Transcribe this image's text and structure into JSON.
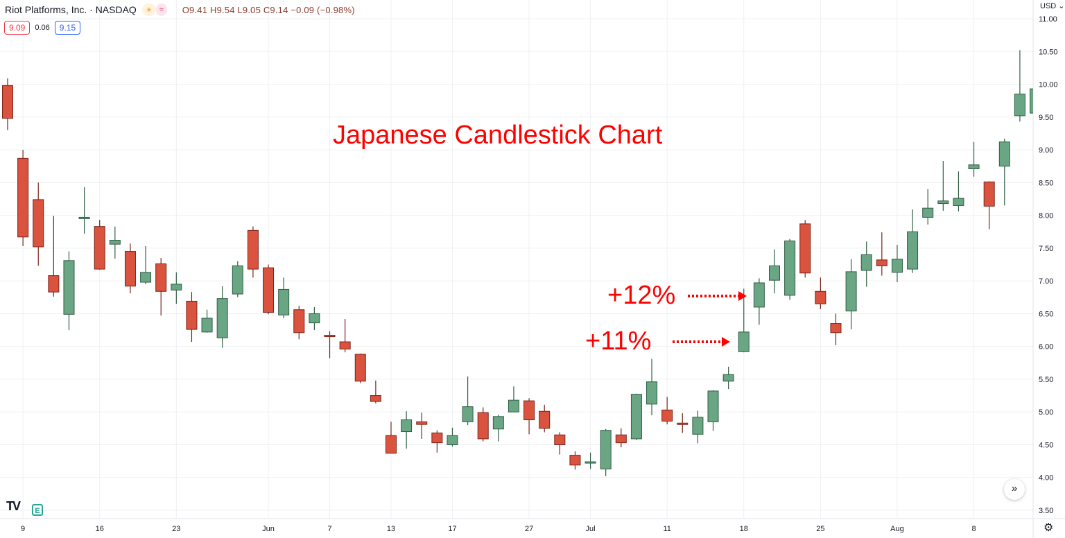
{
  "header": {
    "symbol": "Riot Platforms, Inc. · NASDAQ",
    "session_icon": "sun-icon",
    "session_glyph": "☀",
    "extended_icon": "waves-icon",
    "extended_glyph": "≈",
    "ohlc": "O9.41 H9.54 L9.05 C9.14 −0.09 (−0.98%)",
    "sell_price": "9.09",
    "spread": "0.06",
    "buy_price": "9.15",
    "currency": "USD ⌄"
  },
  "annotations": {
    "title": "Japanese Candlestick Chart",
    "label_12": "+12%",
    "label_11": "+11%",
    "color": "#ff0000"
  },
  "footer": {
    "logo": "TV",
    "e_icon": "E",
    "scroll_glyph": "»",
    "gear_glyph": "⚙"
  },
  "chart_data": {
    "type": "candlestick",
    "title": "Japanese Candlestick Chart",
    "ylim": [
      3.5,
      11.0
    ],
    "y_ticks": [
      "3.50",
      "4.00",
      "4.50",
      "5.00",
      "5.50",
      "6.00",
      "6.50",
      "7.00",
      "7.50",
      "8.00",
      "8.50",
      "9.00",
      "9.50",
      "10.00",
      "10.50",
      "11.00"
    ],
    "x_ticks": [
      {
        "label": "9",
        "index": 1
      },
      {
        "label": "16",
        "index": 6
      },
      {
        "label": "23",
        "index": 11
      },
      {
        "label": "Jun",
        "index": 17
      },
      {
        "label": "7",
        "index": 21
      },
      {
        "label": "13",
        "index": 25
      },
      {
        "label": "17",
        "index": 29
      },
      {
        "label": "27",
        "index": 34
      },
      {
        "label": "Jul",
        "index": 38
      },
      {
        "label": "11",
        "index": 43
      },
      {
        "label": "18",
        "index": 48
      },
      {
        "label": "25",
        "index": 53
      },
      {
        "label": "Aug",
        "index": 58
      },
      {
        "label": "8",
        "index": 63
      }
    ],
    "grid": true,
    "up_color": "#6aa684",
    "down_color": "#d9533f",
    "candles": [
      [
        9.98,
        10.09,
        9.3,
        9.48
      ],
      [
        8.87,
        9.0,
        7.53,
        7.67
      ],
      [
        8.24,
        8.5,
        7.23,
        7.52
      ],
      [
        7.08,
        7.99,
        6.76,
        6.83
      ],
      [
        6.49,
        7.45,
        6.25,
        7.31
      ],
      [
        7.95,
        8.43,
        7.72,
        7.97
      ],
      [
        7.83,
        7.93,
        7.17,
        7.18
      ],
      [
        7.56,
        7.83,
        7.34,
        7.62
      ],
      [
        7.45,
        7.57,
        6.81,
        6.92
      ],
      [
        6.98,
        7.53,
        6.95,
        7.13
      ],
      [
        7.26,
        7.35,
        6.47,
        6.84
      ],
      [
        6.86,
        7.13,
        6.65,
        6.95
      ],
      [
        6.69,
        6.83,
        6.07,
        6.26
      ],
      [
        6.22,
        6.56,
        6.21,
        6.43
      ],
      [
        6.13,
        6.92,
        5.98,
        6.73
      ],
      [
        6.8,
        7.3,
        6.75,
        7.23
      ],
      [
        7.77,
        7.83,
        7.05,
        7.18
      ],
      [
        7.2,
        7.25,
        6.49,
        6.52
      ],
      [
        6.48,
        7.05,
        6.43,
        6.87
      ],
      [
        6.56,
        6.62,
        6.11,
        6.21
      ],
      [
        6.36,
        6.6,
        6.25,
        6.5
      ],
      [
        6.17,
        6.23,
        5.82,
        6.15
      ],
      [
        6.07,
        6.42,
        5.91,
        5.96
      ],
      [
        5.88,
        5.89,
        5.44,
        5.47
      ],
      [
        5.25,
        5.48,
        5.13,
        5.16
      ],
      [
        4.64,
        4.85,
        4.37,
        4.37
      ],
      [
        4.7,
        5.01,
        4.44,
        4.88
      ],
      [
        4.85,
        4.99,
        4.59,
        4.81
      ],
      [
        4.68,
        4.72,
        4.38,
        4.53
      ],
      [
        4.5,
        4.76,
        4.47,
        4.64
      ],
      [
        4.85,
        5.54,
        4.8,
        5.08
      ],
      [
        4.99,
        5.07,
        4.55,
        4.59
      ],
      [
        4.74,
        4.96,
        4.55,
        4.93
      ],
      [
        5.0,
        5.39,
        5.0,
        5.18
      ],
      [
        5.17,
        5.21,
        4.66,
        4.88
      ],
      [
        5.01,
        5.11,
        4.69,
        4.75
      ],
      [
        4.65,
        4.69,
        4.35,
        4.5
      ],
      [
        4.34,
        4.4,
        4.12,
        4.19
      ],
      [
        4.23,
        4.38,
        4.13,
        4.24
      ],
      [
        4.13,
        4.74,
        4.02,
        4.72
      ],
      [
        4.65,
        4.75,
        4.46,
        4.53
      ],
      [
        4.59,
        5.28,
        4.57,
        5.27
      ],
      [
        5.12,
        5.81,
        4.95,
        5.46
      ],
      [
        5.03,
        5.23,
        4.81,
        4.86
      ],
      [
        4.83,
        4.98,
        4.68,
        4.82
      ],
      [
        4.66,
        5.02,
        4.52,
        4.92
      ],
      [
        4.85,
        5.33,
        4.71,
        5.32
      ],
      [
        5.47,
        5.69,
        5.35,
        5.57
      ],
      [
        5.92,
        6.88,
        5.91,
        6.22
      ],
      [
        6.6,
        7.04,
        6.33,
        6.97
      ],
      [
        7.01,
        7.48,
        6.81,
        7.23
      ],
      [
        6.78,
        7.64,
        6.71,
        7.61
      ],
      [
        7.87,
        7.93,
        7.05,
        7.12
      ],
      [
        6.84,
        7.05,
        6.57,
        6.65
      ],
      [
        6.35,
        6.5,
        6.02,
        6.21
      ],
      [
        6.54,
        7.33,
        6.26,
        7.14
      ],
      [
        7.16,
        7.6,
        6.91,
        7.4
      ],
      [
        7.32,
        7.74,
        7.08,
        7.23
      ],
      [
        7.13,
        7.55,
        6.98,
        7.33
      ],
      [
        7.18,
        8.09,
        7.12,
        7.75
      ],
      [
        7.97,
        8.4,
        7.86,
        8.11
      ],
      [
        8.18,
        8.83,
        8.07,
        8.22
      ],
      [
        8.15,
        8.67,
        8.06,
        8.26
      ],
      [
        8.71,
        9.12,
        8.59,
        8.77
      ],
      [
        8.51,
        8.52,
        7.79,
        8.14
      ],
      [
        8.75,
        9.17,
        8.15,
        9.12
      ],
      [
        9.52,
        10.52,
        9.43,
        9.85
      ],
      [
        9.56,
        9.95,
        9.55,
        9.93
      ]
    ]
  }
}
